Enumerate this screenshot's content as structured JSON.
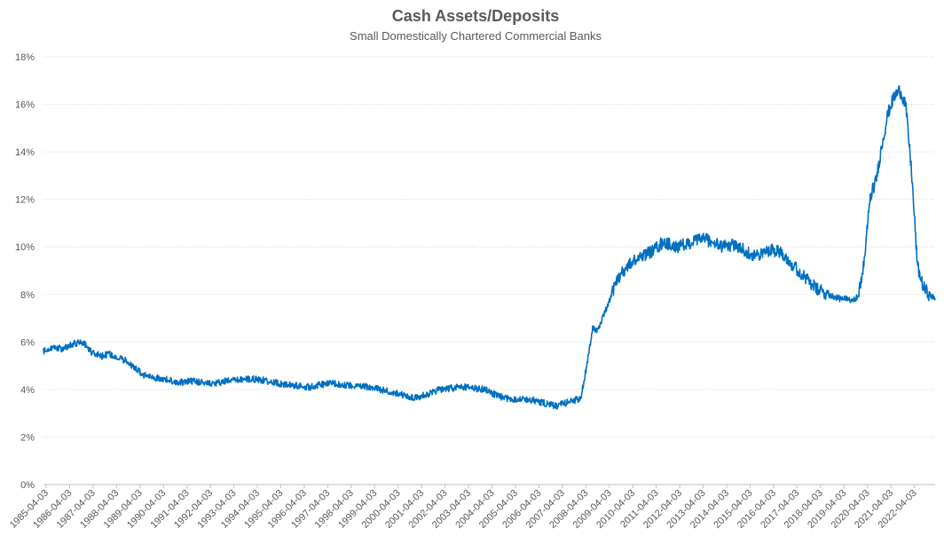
{
  "chart_data": {
    "type": "line",
    "title": "Cash Assets/Deposits",
    "subtitle": "Small Domestically Chartered Commercial Banks",
    "xlabel": "",
    "ylabel": "",
    "ylim": [
      0,
      18
    ],
    "y_ticks": [
      0,
      2,
      4,
      6,
      8,
      10,
      12,
      14,
      16,
      18
    ],
    "y_tick_labels": [
      "0%",
      "2%",
      "4%",
      "6%",
      "8%",
      "10%",
      "12%",
      "14%",
      "16%",
      "18%"
    ],
    "x_range": [
      1985.25,
      2023.0
    ],
    "x_tick_labels": [
      "1985-04-03",
      "1986-04-03",
      "1987-04-03",
      "1988-04-03",
      "1989-04-03",
      "1990-04-03",
      "1991-04-03",
      "1992-04-03",
      "1993-04-03",
      "1994-04-03",
      "1995-04-03",
      "1996-04-03",
      "1997-04-03",
      "1998-04-03",
      "1999-04-03",
      "2000-04-03",
      "2001-04-03",
      "2002-04-03",
      "2003-04-03",
      "2004-04-03",
      "2005-04-03",
      "2006-04-03",
      "2007-04-03",
      "2008-04-03",
      "2009-04-03",
      "2010-04-03",
      "2011-04-03",
      "2012-04-03",
      "2013-04-03",
      "2014-04-03",
      "2015-04-03",
      "2016-04-03",
      "2017-04-03",
      "2018-04-03",
      "2019-04-03",
      "2020-04-03",
      "2021-04-03",
      "2022-04-03"
    ],
    "grid": true,
    "legend": "none",
    "series": [
      {
        "name": "Cash Assets/Deposits",
        "color": "#0070c0",
        "x": [
          1985.25,
          1985.5,
          1985.75,
          1986.0,
          1986.25,
          1986.5,
          1986.75,
          1987.0,
          1987.25,
          1987.5,
          1987.75,
          1988.0,
          1988.25,
          1988.5,
          1988.75,
          1989.0,
          1989.25,
          1989.5,
          1990.0,
          1990.5,
          1991.0,
          1991.5,
          1992.0,
          1992.5,
          1993.0,
          1993.5,
          1994.0,
          1994.5,
          1995.0,
          1995.5,
          1996.0,
          1996.5,
          1997.0,
          1997.5,
          1998.0,
          1998.5,
          1999.0,
          1999.5,
          2000.0,
          2000.5,
          2001.0,
          2001.5,
          2002.0,
          2002.5,
          2003.0,
          2003.5,
          2004.0,
          2004.5,
          2005.0,
          2005.5,
          2006.0,
          2006.5,
          2007.0,
          2007.5,
          2008.0,
          2008.25,
          2008.5,
          2008.75,
          2009.0,
          2009.25,
          2009.5,
          2010.0,
          2010.5,
          2011.0,
          2011.5,
          2012.0,
          2012.5,
          2013.0,
          2013.25,
          2013.5,
          2014.0,
          2014.5,
          2015.0,
          2015.5,
          2016.0,
          2016.5,
          2017.0,
          2017.5,
          2018.0,
          2018.5,
          2019.0,
          2019.5,
          2019.75,
          2020.0,
          2020.25,
          2020.5,
          2020.75,
          2021.0,
          2021.25,
          2021.5,
          2021.75,
          2022.0,
          2022.25,
          2022.5,
          2022.75,
          2023.0
        ],
        "y": [
          5.6,
          5.7,
          5.8,
          5.7,
          5.8,
          5.9,
          6.0,
          5.9,
          5.6,
          5.5,
          5.4,
          5.5,
          5.4,
          5.3,
          5.2,
          5.0,
          4.8,
          4.6,
          4.5,
          4.4,
          4.3,
          4.35,
          4.3,
          4.25,
          4.35,
          4.4,
          4.45,
          4.4,
          4.3,
          4.2,
          4.15,
          4.1,
          4.2,
          4.25,
          4.2,
          4.15,
          4.1,
          4.0,
          3.9,
          3.75,
          3.65,
          3.8,
          4.0,
          4.05,
          4.1,
          4.05,
          4.0,
          3.7,
          3.6,
          3.6,
          3.55,
          3.4,
          3.3,
          3.5,
          3.6,
          5.0,
          6.6,
          6.5,
          7.2,
          7.8,
          8.6,
          9.2,
          9.6,
          9.8,
          10.2,
          10.0,
          10.1,
          10.3,
          10.4,
          10.2,
          10.0,
          10.1,
          9.8,
          9.6,
          9.9,
          9.8,
          9.2,
          8.7,
          8.2,
          8.0,
          7.8,
          7.8,
          7.9,
          9.4,
          12.1,
          12.8,
          14.3,
          15.6,
          16.3,
          16.6,
          16.0,
          13.2,
          9.2,
          8.3,
          8.0,
          7.8
        ]
      }
    ]
  }
}
